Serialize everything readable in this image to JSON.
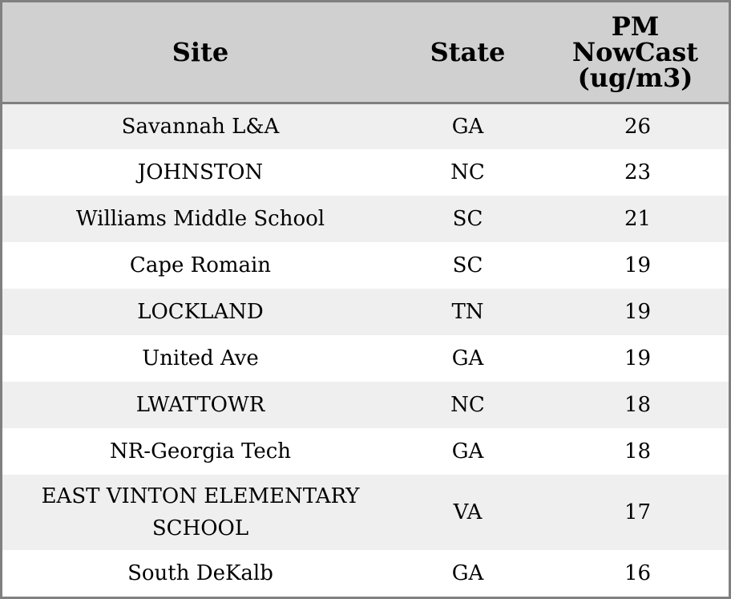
{
  "table": {
    "columns": {
      "site": "Site",
      "state": "State",
      "pm": "PM\nNowCast\n(ug/m3)"
    },
    "rows": [
      {
        "site": "Savannah L&A",
        "state": "GA",
        "pm": "26"
      },
      {
        "site": "JOHNSTON",
        "state": "NC",
        "pm": "23"
      },
      {
        "site": "Williams Middle School",
        "state": "SC",
        "pm": "21"
      },
      {
        "site": "Cape Romain",
        "state": "SC",
        "pm": "19"
      },
      {
        "site": "LOCKLAND",
        "state": "TN",
        "pm": "19"
      },
      {
        "site": "United Ave",
        "state": "GA",
        "pm": "19"
      },
      {
        "site": "LWATTOWR",
        "state": "NC",
        "pm": "18"
      },
      {
        "site": "NR-Georgia Tech",
        "state": "GA",
        "pm": "18"
      },
      {
        "site": "EAST VINTON ELEMENTARY SCHOOL",
        "state": "VA",
        "pm": "17"
      },
      {
        "site": "South DeKalb",
        "state": "GA",
        "pm": "16"
      }
    ]
  },
  "colors": {
    "header_background": "#d0d0d0",
    "stripe_background": "#efefef",
    "border": "#808080"
  }
}
